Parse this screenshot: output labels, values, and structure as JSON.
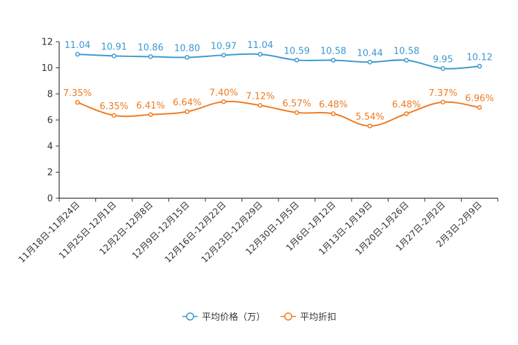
{
  "chart_data": {
    "type": "line",
    "categories": [
      "11月18日-11月24日",
      "11月25日-12月1日",
      "12月2日-12月8日",
      "12月9日-12月15日",
      "12月16日-12月22日",
      "12月23日-12月29日",
      "12月30日-1月5日",
      "1月6日-1月12日",
      "1月13日-1月19日",
      "1月20日-1月26日",
      "1月27日-2月2日",
      "2月3日-2月9日"
    ],
    "series": [
      {
        "name": "平均价格（万）",
        "color": "#3a98cf",
        "values": [
          11.04,
          10.91,
          10.86,
          10.8,
          10.97,
          11.04,
          10.59,
          10.58,
          10.44,
          10.58,
          9.95,
          10.12
        ],
        "labels": [
          "11.04",
          "10.91",
          "10.86",
          "10.80",
          "10.97",
          "11.04",
          "10.59",
          "10.58",
          "10.44",
          "10.58",
          "9.95",
          "10.12"
        ]
      },
      {
        "name": "平均折扣",
        "color": "#f07a1e",
        "values": [
          7.35,
          6.35,
          6.41,
          6.64,
          7.4,
          7.12,
          6.57,
          6.48,
          5.54,
          6.48,
          7.37,
          6.96
        ],
        "labels": [
          "7.35%",
          "6.35%",
          "6.41%",
          "6.64%",
          "7.40%",
          "7.12%",
          "6.57%",
          "6.48%",
          "5.54%",
          "6.48%",
          "7.37%",
          "6.96%"
        ]
      }
    ],
    "ylim": [
      0,
      12
    ],
    "yticks": [
      "0",
      "2",
      "4",
      "6",
      "8",
      "10",
      "12"
    ],
    "grid": false,
    "legend": "bottom-center"
  }
}
